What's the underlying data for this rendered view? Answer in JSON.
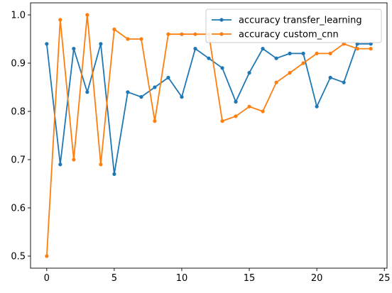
{
  "chart_data": {
    "type": "line",
    "title": "",
    "xlabel": "",
    "ylabel": "",
    "xlim": [
      -1.2,
      25.2
    ],
    "ylim": [
      0.475,
      1.025
    ],
    "grid": false,
    "legend_position": "top-right",
    "x": [
      0,
      1,
      2,
      3,
      4,
      5,
      6,
      7,
      8,
      9,
      10,
      11,
      12,
      13,
      14,
      15,
      16,
      17,
      18,
      19,
      20,
      21,
      22,
      23,
      24
    ],
    "xticks": [
      0,
      5,
      10,
      15,
      20,
      25
    ],
    "yticks": [
      0.5,
      0.6,
      0.7,
      0.8,
      0.9,
      1.0
    ],
    "xtick_labels": [
      "0",
      "5",
      "10",
      "15",
      "20",
      "25"
    ],
    "ytick_labels": [
      "0.5",
      "0.6",
      "0.7",
      "0.8",
      "0.9",
      "1.0"
    ],
    "series": [
      {
        "name": "accuracy transfer_learning",
        "color": "#1f77b4",
        "values": [
          0.94,
          0.69,
          0.93,
          0.84,
          0.94,
          0.67,
          0.84,
          0.83,
          0.85,
          0.87,
          0.83,
          0.93,
          0.91,
          0.89,
          0.82,
          0.88,
          0.93,
          0.91,
          0.92,
          0.92,
          0.81,
          0.87,
          0.86,
          0.94,
          0.94
        ]
      },
      {
        "name": "accuracy custom_cnn",
        "color": "#ff7f0e",
        "values": [
          0.5,
          0.99,
          0.7,
          1.0,
          0.69,
          0.97,
          0.95,
          0.95,
          0.78,
          0.96,
          0.96,
          0.96,
          0.96,
          0.78,
          0.79,
          0.81,
          0.8,
          0.86,
          0.88,
          0.9,
          0.92,
          0.92,
          0.94,
          0.93,
          0.93
        ]
      }
    ]
  }
}
